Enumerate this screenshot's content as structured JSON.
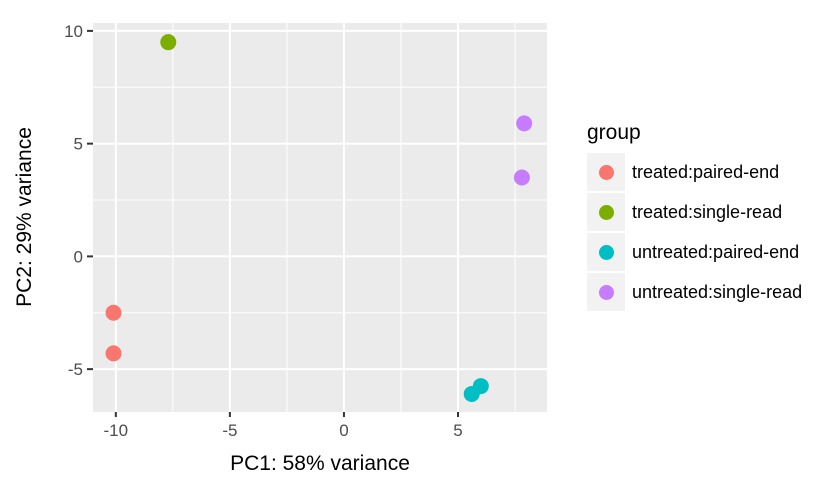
{
  "chart_data": {
    "type": "scatter",
    "title": "",
    "xlabel": "PC1: 58% variance",
    "ylabel": "PC2: 29% variance",
    "legend_title": "group",
    "legend_position": "right",
    "xlim": [
      -11.0,
      8.9
    ],
    "ylim": [
      -6.9,
      10.35
    ],
    "x_ticks": [
      -10,
      -5,
      0,
      5
    ],
    "y_ticks": [
      10,
      5,
      0,
      -5
    ],
    "x_minor_ticks": [
      -7.5,
      -2.5,
      2.5,
      7.5
    ],
    "y_minor_ticks": [
      7.5,
      2.5,
      -2.5
    ],
    "grid": "on",
    "series": [
      {
        "name": "treated:paired-end",
        "color": "#F8766D",
        "points": [
          [
            -10.1,
            -2.5
          ],
          [
            -10.1,
            -4.3
          ]
        ]
      },
      {
        "name": "treated:single-read",
        "color": "#7CAE00",
        "points": [
          [
            -7.7,
            9.5
          ]
        ]
      },
      {
        "name": "untreated:paired-end",
        "color": "#00BFC4",
        "points": [
          [
            5.6,
            -6.1
          ],
          [
            6.0,
            -5.75
          ]
        ]
      },
      {
        "name": "untreated:single-read",
        "color": "#C77CFF",
        "points": [
          [
            7.9,
            5.9
          ],
          [
            7.8,
            3.5
          ]
        ]
      }
    ],
    "colors": {
      "panel_background": "#EBEBEB",
      "grid_line": "#FFFFFF",
      "tick_mark": "#333333",
      "tick_label": "#4D4D4D",
      "axis_title": "#000000",
      "legend_key_background": "#F2F2F2",
      "figure_background": "#FFFFFF"
    }
  }
}
